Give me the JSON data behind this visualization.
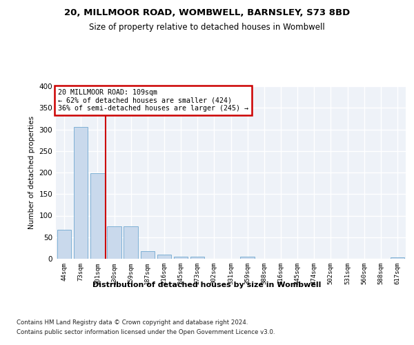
{
  "title_line1": "20, MILLMOOR ROAD, WOMBWELL, BARNSLEY, S73 8BD",
  "title_line2": "Size of property relative to detached houses in Wombwell",
  "xlabel": "Distribution of detached houses by size in Wombwell",
  "ylabel": "Number of detached properties",
  "bar_color": "#c9d9ec",
  "bar_edge_color": "#6fa8d0",
  "background_color": "#eef2f8",
  "grid_color": "#ffffff",
  "categories": [
    "44sqm",
    "73sqm",
    "101sqm",
    "130sqm",
    "159sqm",
    "187sqm",
    "216sqm",
    "245sqm",
    "273sqm",
    "302sqm",
    "331sqm",
    "359sqm",
    "388sqm",
    "416sqm",
    "445sqm",
    "474sqm",
    "502sqm",
    "531sqm",
    "560sqm",
    "588sqm",
    "617sqm"
  ],
  "values": [
    67,
    305,
    199,
    76,
    76,
    18,
    9,
    5,
    5,
    0,
    0,
    5,
    0,
    0,
    0,
    0,
    0,
    0,
    0,
    0,
    4
  ],
  "ylim": [
    0,
    400
  ],
  "yticks": [
    0,
    50,
    100,
    150,
    200,
    250,
    300,
    350,
    400
  ],
  "property_label": "20 MILLMOOR ROAD: 109sqm",
  "annotation_line1": "← 62% of detached houses are smaller (424)",
  "annotation_line2": "36% of semi-detached houses are larger (245) →",
  "vline_index": 2.5,
  "annotation_box_color": "#ffffff",
  "annotation_box_edge": "#cc0000",
  "vline_color": "#cc0000",
  "footer_line1": "Contains HM Land Registry data © Crown copyright and database right 2024.",
  "footer_line2": "Contains public sector information licensed under the Open Government Licence v3.0."
}
